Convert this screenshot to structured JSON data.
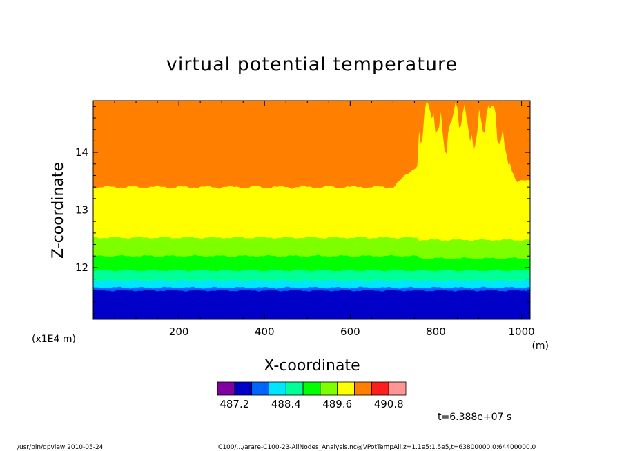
{
  "chart_data": {
    "type": "heatmap",
    "subtype": "filled-contour",
    "title": "virtual potential temperature",
    "xlabel": "X-coordinate",
    "ylabel": "Z-coordinate",
    "x_unit": "(m)",
    "y_unit": "(x1E4 m)",
    "xlim": [
      0,
      1020
    ],
    "ylim": [
      11.1,
      14.9
    ],
    "x_ticks": [
      200,
      400,
      600,
      800,
      1000
    ],
    "y_ticks": [
      12,
      13,
      14
    ],
    "colorbar": {
      "colors": [
        "#8000a0",
        "#0000c8",
        "#0064ff",
        "#00e6ff",
        "#00ff96",
        "#00ff00",
        "#7dff00",
        "#ffff00",
        "#ff8000",
        "#ff1e1e",
        "#ff9696"
      ],
      "tick_labels": [
        "487.2",
        "488.4",
        "489.6",
        "490.8"
      ]
    },
    "contour_levels": [
      {
        "band": "blue",
        "color": "#0000c8",
        "z_top": 11.6
      },
      {
        "band": "light-blue",
        "color": "#0064ff",
        "z_top": 11.65
      },
      {
        "band": "cyan",
        "color": "#00e6ff",
        "z_top": 11.77
      },
      {
        "band": "aqua-green",
        "color": "#00ff96",
        "z_top": 11.95
      },
      {
        "band": "green",
        "color": "#00ff00",
        "z_top": 12.2
      },
      {
        "band": "light-green",
        "color": "#7dff00",
        "z_top": 12.52
      },
      {
        "band": "yellow",
        "color": "#ffff00",
        "z_top": 13.4
      },
      {
        "band": "orange",
        "color": "#ff8000",
        "z_top": 14.9
      }
    ],
    "annotation": "t=6.388e+07 s"
  },
  "footer": {
    "left": "/usr/bin/gpview   2010-05-24",
    "right": "C100/.../arare-C100-23-AllNodes_Analysis.nc@VPotTempAll,z=1.1e5:1.5e5,t=63800000.0:64400000.0"
  }
}
